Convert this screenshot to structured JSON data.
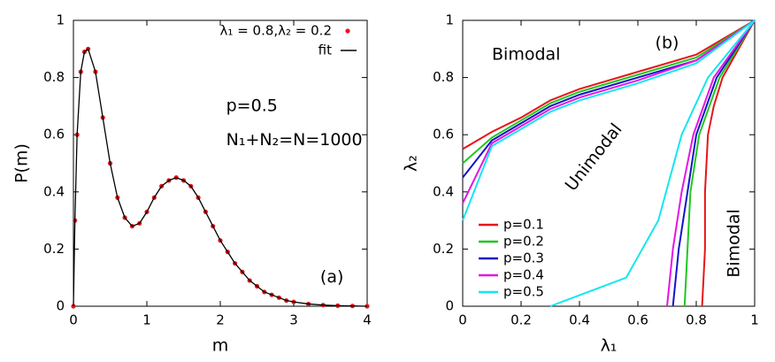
{
  "chart_data": [
    {
      "type": "scatter",
      "xlabel": "m",
      "ylabel": "P(m)",
      "annotations": [
        "p=0.5",
        "N₁+N₂=N=1000",
        "(a)"
      ],
      "x": [
        0,
        0.02,
        0.05,
        0.1,
        0.15,
        0.2,
        0.3,
        0.4,
        0.5,
        0.6,
        0.7,
        0.8,
        0.9,
        1.0,
        1.1,
        1.2,
        1.3,
        1.4,
        1.5,
        1.6,
        1.7,
        1.8,
        1.9,
        2.0,
        2.1,
        2.2,
        2.3,
        2.4,
        2.5,
        2.6,
        2.7,
        2.8,
        2.9,
        3.0,
        3.2,
        3.4,
        3.6,
        3.8,
        4.0
      ],
      "series": [
        {
          "name": "λ₁ = 0.8,λ₂ = 0.2",
          "color": "#e8141a",
          "style": "points",
          "values": [
            0,
            0.3,
            0.6,
            0.82,
            0.89,
            0.9,
            0.82,
            0.66,
            0.5,
            0.38,
            0.31,
            0.28,
            0.29,
            0.33,
            0.38,
            0.42,
            0.44,
            0.45,
            0.44,
            0.42,
            0.38,
            0.33,
            0.28,
            0.23,
            0.19,
            0.15,
            0.12,
            0.09,
            0.07,
            0.05,
            0.04,
            0.03,
            0.02,
            0.015,
            0.008,
            0.004,
            0.002,
            0.001,
            0
          ]
        },
        {
          "name": "fit",
          "color": "#000000",
          "style": "line",
          "values": [
            0,
            0.3,
            0.6,
            0.82,
            0.89,
            0.9,
            0.82,
            0.66,
            0.5,
            0.38,
            0.31,
            0.28,
            0.29,
            0.33,
            0.38,
            0.42,
            0.44,
            0.45,
            0.44,
            0.42,
            0.38,
            0.33,
            0.28,
            0.23,
            0.19,
            0.15,
            0.12,
            0.09,
            0.07,
            0.05,
            0.04,
            0.03,
            0.02,
            0.015,
            0.008,
            0.004,
            0.002,
            0.001,
            0
          ]
        }
      ],
      "xlim": [
        0,
        4
      ],
      "ylim": [
        0,
        1
      ],
      "xticks": [
        0,
        1,
        2,
        3,
        4
      ],
      "yticks": [
        0,
        0.2,
        0.4,
        0.6,
        0.8,
        1
      ],
      "legend": "top-right"
    },
    {
      "type": "line",
      "xlabel": "λ₁",
      "ylabel": "λ₂",
      "annotations": [
        "Bimodal",
        "(b)",
        "Unimodal",
        "Bimodal"
      ],
      "series": [
        {
          "name": "p=0.1",
          "color": "#e8141a",
          "branches": [
            {
              "x": [
                0,
                0.1,
                0.2,
                0.3,
                0.4,
                0.6,
                0.8,
                1
              ],
              "y": [
                0.55,
                0.61,
                0.66,
                0.72,
                0.76,
                0.82,
                0.88,
                1
              ]
            },
            {
              "x": [
                0.82,
                0.83,
                0.83,
                0.84,
                0.86,
                0.89,
                1
              ],
              "y": [
                0,
                0.2,
                0.4,
                0.6,
                0.7,
                0.8,
                1
              ]
            }
          ]
        },
        {
          "name": "p=0.2",
          "color": "#1ec81e",
          "branches": [
            {
              "x": [
                0,
                0.1,
                0.2,
                0.3,
                0.4,
                0.6,
                0.8,
                1
              ],
              "y": [
                0.5,
                0.59,
                0.65,
                0.71,
                0.75,
                0.81,
                0.87,
                1
              ]
            },
            {
              "x": [
                0.76,
                0.77,
                0.78,
                0.81,
                0.88,
                1
              ],
              "y": [
                0,
                0.2,
                0.4,
                0.6,
                0.8,
                1
              ]
            }
          ]
        },
        {
          "name": "p=0.3",
          "color": "#1414c8",
          "branches": [
            {
              "x": [
                0,
                0.1,
                0.2,
                0.3,
                0.4,
                0.6,
                0.8,
                1
              ],
              "y": [
                0.45,
                0.58,
                0.64,
                0.7,
                0.74,
                0.8,
                0.86,
                1
              ]
            },
            {
              "x": [
                0.72,
                0.74,
                0.77,
                0.8,
                0.87,
                1
              ],
              "y": [
                0,
                0.2,
                0.4,
                0.6,
                0.8,
                1
              ]
            }
          ]
        },
        {
          "name": "p=0.4",
          "color": "#e614e6",
          "branches": [
            {
              "x": [
                0,
                0.1,
                0.2,
                0.3,
                0.4,
                0.6,
                0.8,
                1
              ],
              "y": [
                0.36,
                0.57,
                0.63,
                0.69,
                0.73,
                0.79,
                0.86,
                1
              ]
            },
            {
              "x": [
                0.7,
                0.72,
                0.75,
                0.79,
                0.86,
                1
              ],
              "y": [
                0,
                0.2,
                0.4,
                0.6,
                0.8,
                1
              ]
            }
          ]
        },
        {
          "name": "p=0.5",
          "color": "#14e6f0",
          "branches": [
            {
              "x": [
                0,
                0.1,
                0.2,
                0.3,
                0.4,
                0.6,
                0.8,
                1
              ],
              "y": [
                0.3,
                0.56,
                0.62,
                0.68,
                0.72,
                0.78,
                0.85,
                1
              ]
            },
            {
              "x": [
                0.3,
                0.56,
                0.67,
                0.75,
                0.84,
                1
              ],
              "y": [
                0,
                0.1,
                0.3,
                0.6,
                0.8,
                1
              ]
            }
          ]
        }
      ],
      "xlim": [
        0,
        1
      ],
      "ylim": [
        0,
        1
      ],
      "xticks": [
        0,
        0.2,
        0.4,
        0.6,
        0.8,
        1
      ],
      "yticks": [
        0,
        0.2,
        0.4,
        0.6,
        0.8,
        1
      ],
      "legend": "bottom-left"
    }
  ]
}
